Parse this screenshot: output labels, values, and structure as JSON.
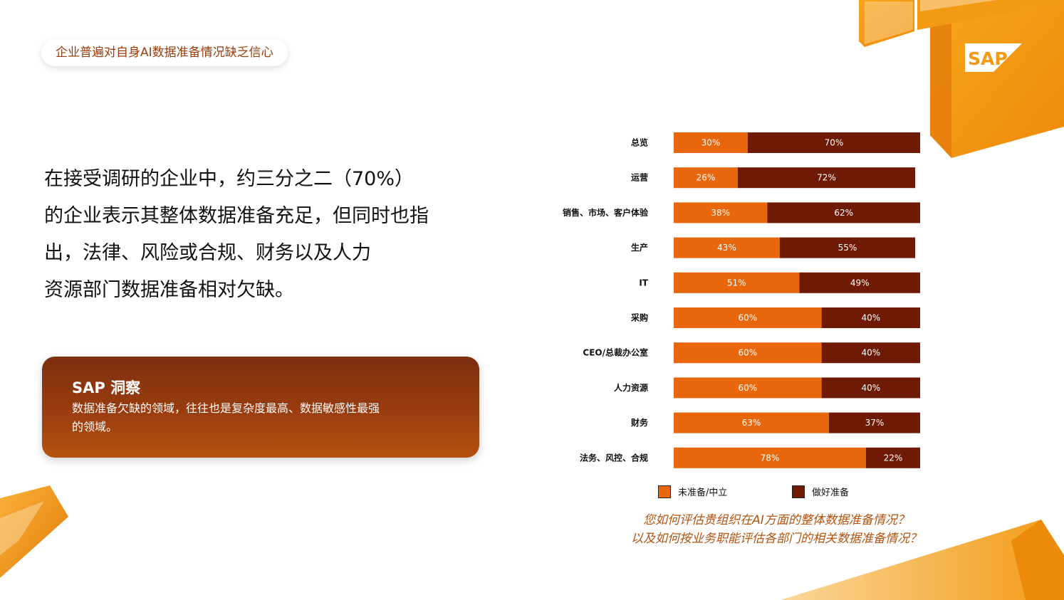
{
  "header": {
    "tag_label": "企业普遍对自身AI数据准备情况缺乏信心"
  },
  "headline": {
    "lines": [
      "在接受调研的企业中，约三分之二（70%）",
      "的企业表示其整体数据准备充足，但同时也指",
      "出，法律、风险或合规、财务以及人力",
      "资源部门数据准备相对欠缺。"
    ]
  },
  "insight": {
    "title": "SAP 洞察",
    "body_lines": [
      "数据准备欠缺的领域，往往也是复杂度最高、数据敏感性最强",
      "的领域。"
    ]
  },
  "brand": {
    "logo_text": "SAP"
  },
  "colors": {
    "not_ready": "#e8670c",
    "ready": "#6e1a04",
    "accent": "#f39a12"
  },
  "chart_data": {
    "type": "bar",
    "orientation": "horizontal-stacked",
    "categories": [
      "总览",
      "运营",
      "销售、市场、客户体验",
      "生产",
      "IT",
      "采购",
      "CEO/总裁办公室",
      "人力资源",
      "财务",
      "法务、风控、合规"
    ],
    "series": [
      {
        "name": "未准备/中立",
        "values": [
          30,
          26,
          38,
          43,
          51,
          60,
          60,
          60,
          63,
          78
        ]
      },
      {
        "name": "做好准备",
        "values": [
          70,
          72,
          62,
          55,
          49,
          40,
          40,
          40,
          37,
          22
        ]
      }
    ],
    "unit": "%",
    "legend_position": "bottom",
    "grid": false
  },
  "question": {
    "lines": [
      "您如何评估贵组织在AI方面的整体数据准备情况？",
      "以及如何按业务职能评估各部门的相关数据准备情况？"
    ]
  }
}
